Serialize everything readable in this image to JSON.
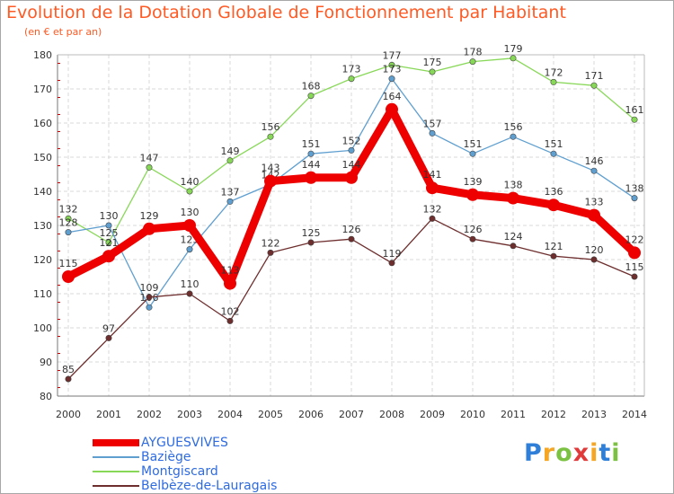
{
  "header": {
    "title": "Evolution de la Dotation Globale de Fonctionnement par Habitant",
    "subtitle": "(en € et par an)"
  },
  "chart_data": {
    "type": "line",
    "title": "Evolution de la Dotation Globale de Fonctionnement par Habitant",
    "subtitle": "(en € et par an)",
    "xlabel": "",
    "ylabel": "",
    "x": [
      "2000",
      "2001",
      "2002",
      "2003",
      "2004",
      "2005",
      "2006",
      "2007",
      "2008",
      "2009",
      "2010",
      "2011",
      "2012",
      "2013",
      "2014"
    ],
    "ylim": [
      80,
      180
    ],
    "yticks": [
      80,
      90,
      100,
      110,
      120,
      130,
      140,
      150,
      160,
      170,
      180
    ],
    "grid": true,
    "legend_position": "bottom-left",
    "series": [
      {
        "name": "Montgiscard",
        "color": "#88d858",
        "thick": false,
        "values": [
          132,
          125,
          147,
          140,
          149,
          156,
          168,
          173,
          177,
          175,
          178,
          179,
          172,
          171,
          161
        ]
      },
      {
        "name": "Baziège",
        "color": "#5f9fd0",
        "thick": false,
        "values": [
          128,
          130,
          106,
          123,
          137,
          142,
          151,
          152,
          173,
          157,
          151,
          156,
          151,
          146,
          138
        ]
      },
      {
        "name": "Belbèze-de-Lauragais",
        "color": "#6e2e2e",
        "thick": false,
        "values": [
          85,
          97,
          109,
          110,
          102,
          122,
          125,
          126,
          119,
          132,
          126,
          124,
          121,
          120,
          115
        ]
      },
      {
        "name": "AYGUESVIVES",
        "color": "#ee0000",
        "thick": true,
        "values": [
          115,
          121,
          129,
          130,
          113,
          143,
          144,
          144,
          164,
          141,
          139,
          138,
          136,
          133,
          122
        ]
      }
    ]
  },
  "legend": {
    "items": [
      {
        "label": "AYGUESVIVES",
        "color": "#ee0000"
      },
      {
        "label": "Baziège",
        "color": "#5f9fd0"
      },
      {
        "label": "Montgiscard",
        "color": "#88d858"
      },
      {
        "label": "Belbèze-de-Lauragais",
        "color": "#6e2e2e"
      }
    ]
  },
  "brand": {
    "letters": [
      {
        "ch": "P",
        "color": "#2f7fd8"
      },
      {
        "ch": "r",
        "color": "#f5a623"
      },
      {
        "ch": "o",
        "color": "#7cc242"
      },
      {
        "ch": "x",
        "color": "#e03a3a"
      },
      {
        "ch": "i",
        "color": "#f5a623"
      },
      {
        "ch": "t",
        "color": "#2f7fd8"
      },
      {
        "ch": "i",
        "color": "#7cc242"
      }
    ]
  }
}
